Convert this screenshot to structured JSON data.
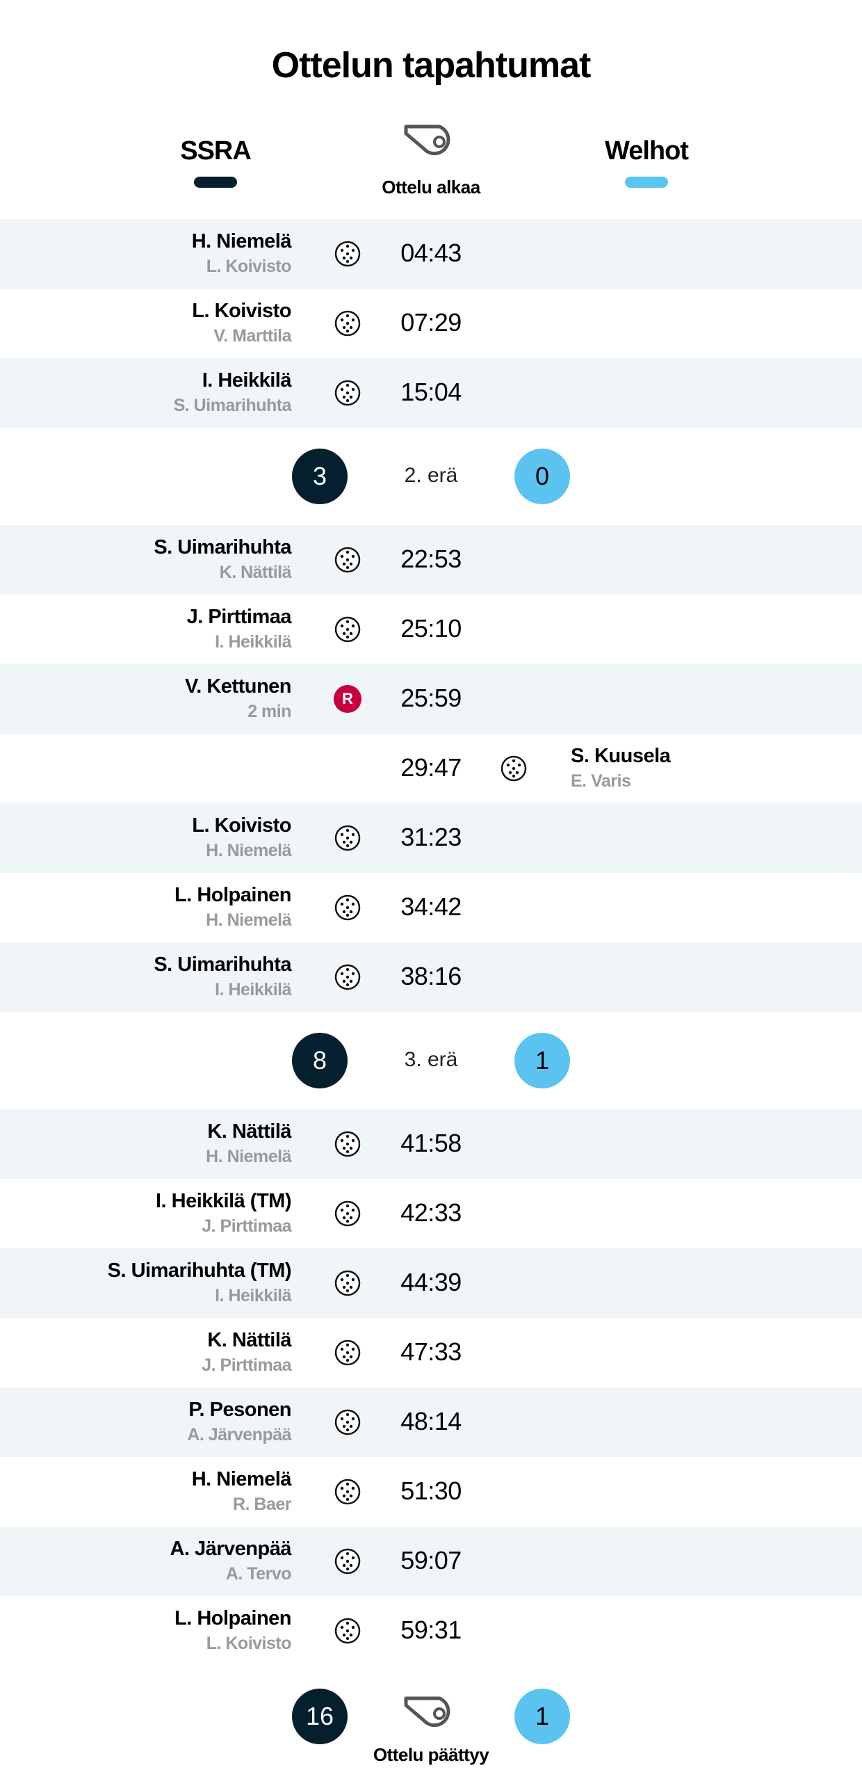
{
  "title": "Ottelun tapahtumat",
  "colors": {
    "home": "#04202f",
    "away": "#5bc3f0",
    "penalty": "#c8003c",
    "row_alt": "#f0f5f8"
  },
  "teams": {
    "home": "SSRA",
    "away": "Welhot"
  },
  "start_label": "Ottelu alkaa",
  "end_label": "Ottelu päättyy",
  "sections": [
    {
      "events": [
        {
          "type": "goal",
          "side": "home",
          "player": "H. Niemelä",
          "detail": "L. Koivisto",
          "time": "04:43"
        },
        {
          "type": "goal",
          "side": "home",
          "player": "L. Koivisto",
          "detail": "V. Marttila",
          "time": "07:29"
        },
        {
          "type": "goal",
          "side": "home",
          "player": "I. Heikkilä",
          "detail": "S. Uimarihuhta",
          "time": "15:04"
        }
      ]
    },
    {
      "break": {
        "home": "3",
        "away": "0",
        "label": "2. erä"
      },
      "events": [
        {
          "type": "goal",
          "side": "home",
          "player": "S. Uimarihuhta",
          "detail": "K. Nättilä",
          "time": "22:53"
        },
        {
          "type": "goal",
          "side": "home",
          "player": "J. Pirttimaa",
          "detail": "I. Heikkilä",
          "time": "25:10"
        },
        {
          "type": "penalty",
          "side": "home",
          "player": "V. Kettunen",
          "detail": "2 min",
          "time": "25:59",
          "badge": "R"
        },
        {
          "type": "goal",
          "side": "away",
          "player": "S. Kuusela",
          "detail": "E. Varis",
          "time": "29:47"
        },
        {
          "type": "goal",
          "side": "home",
          "player": "L. Koivisto",
          "detail": "H. Niemelä",
          "time": "31:23"
        },
        {
          "type": "goal",
          "side": "home",
          "player": "L. Holpainen",
          "detail": "H. Niemelä",
          "time": "34:42"
        },
        {
          "type": "goal",
          "side": "home",
          "player": "S. Uimarihuhta",
          "detail": "I. Heikkilä",
          "time": "38:16"
        }
      ]
    },
    {
      "break": {
        "home": "8",
        "away": "1",
        "label": "3. erä"
      },
      "events": [
        {
          "type": "goal",
          "side": "home",
          "player": "K. Nättilä",
          "detail": "H. Niemelä",
          "time": "41:58"
        },
        {
          "type": "goal",
          "side": "home",
          "player": "I. Heikkilä (TM)",
          "detail": "J. Pirttimaa",
          "time": "42:33"
        },
        {
          "type": "goal",
          "side": "home",
          "player": "S. Uimarihuhta (TM)",
          "detail": "I. Heikkilä",
          "time": "44:39"
        },
        {
          "type": "goal",
          "side": "home",
          "player": "K. Nättilä",
          "detail": "J. Pirttimaa",
          "time": "47:33"
        },
        {
          "type": "goal",
          "side": "home",
          "player": "P. Pesonen",
          "detail": "A. Järvenpää",
          "time": "48:14"
        },
        {
          "type": "goal",
          "side": "home",
          "player": "H. Niemelä",
          "detail": "R. Baer",
          "time": "51:30"
        },
        {
          "type": "goal",
          "side": "home",
          "player": "A. Järvenpää",
          "detail": "A. Tervo",
          "time": "59:07"
        },
        {
          "type": "goal",
          "side": "home",
          "player": "L. Holpainen",
          "detail": "L. Koivisto",
          "time": "59:31"
        }
      ]
    }
  ],
  "final": {
    "home": "16",
    "away": "1"
  }
}
